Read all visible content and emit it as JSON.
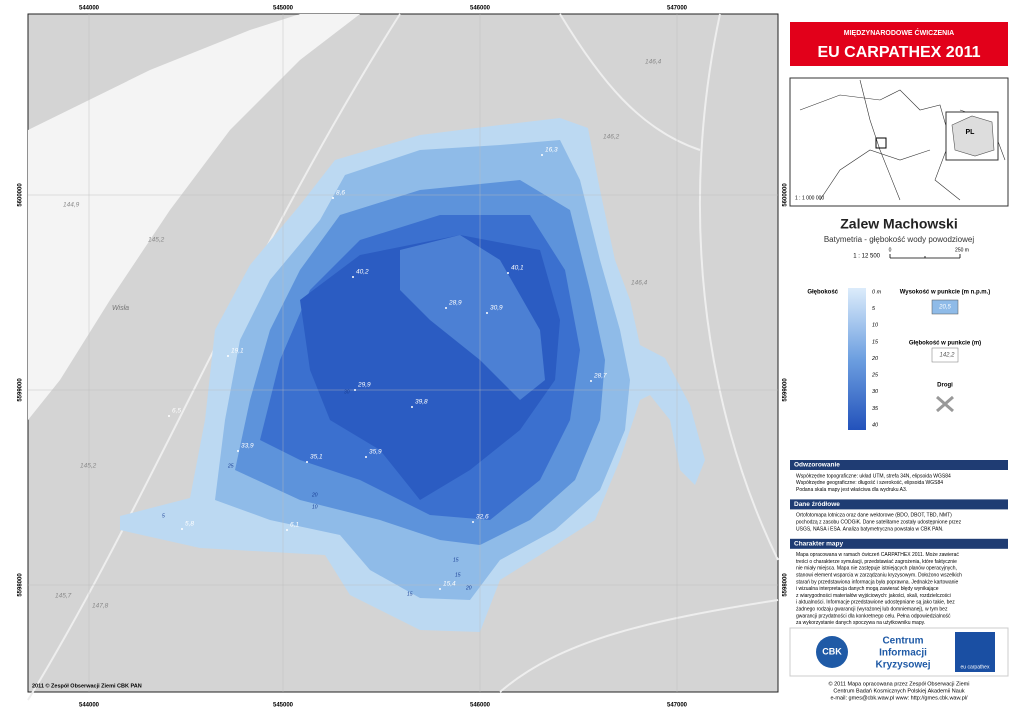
{
  "map": {
    "grid_top": [
      "544000",
      "545000",
      "546000",
      "547000"
    ],
    "grid_bottom": [
      "544000",
      "545000",
      "546000",
      "547000"
    ],
    "grid_left": [
      "5600000",
      "5599000",
      "5598000"
    ],
    "grid_right": [
      "5600000",
      "5599000",
      "5598000"
    ],
    "river": "Wisła",
    "depth_points": [
      "16,3",
      "8,6",
      "40,2",
      "40,1",
      "28,9",
      "30,9",
      "19,1",
      "28,7",
      "29,9",
      "39,8",
      "6,5",
      "33,9",
      "35,1",
      "35,9",
      "32,6",
      "5,8",
      "6,1",
      "15,4"
    ],
    "height_points": [
      "144,9",
      "145,2",
      "146,4",
      "146,2",
      "146,4",
      "145,2",
      "145,7",
      "147,8"
    ],
    "contour_labels": [
      "5",
      "10",
      "15",
      "20",
      "25",
      "30",
      "15",
      "20",
      "15"
    ],
    "credit": "2011 © Zespół Obserwacji Ziemi CBK PAN"
  },
  "panel": {
    "header_small": "MIĘDZYNARODOWE ĆWICZENIA",
    "header_big": "EU CARPATHEX 2011",
    "inset_country": "PL",
    "inset_scale": "1 : 1 000 000",
    "title": "Zalew Machowski",
    "subtitle": "Batymetria - głębokość wody powodziowej",
    "scale": "1 : 12 500",
    "scale_zero": "0",
    "scale_end": "250 m",
    "legend_depth": "Głębokość",
    "legend_ticks": [
      "0 m",
      "5",
      "10",
      "15",
      "20",
      "25",
      "30",
      "35",
      "40"
    ],
    "legend_height": "Wysokość w punkcie (m n.p.m.)",
    "legend_height_sample": "20,5",
    "legend_depth_point": "Głębokość w punkcie (m)",
    "legend_depth_point_sample": "142,2",
    "legend_roads": "Drogi",
    "sections": [
      {
        "heading": "Odwzorowanie",
        "lines": [
          "Współrzędne topograficzne: układ UTM, strefa 34N, elipsoida WGS84",
          "Współrzędne geograficzne: długość i szerokość, elipsoida WGS84",
          "Podana skala mapy jest właściwa dla wydruku A3."
        ]
      },
      {
        "heading": "Dane źródłowe",
        "lines": [
          "Ortofotomapa lotnicza oraz dane wektorowe (BDO, DBOT, TBD, NMT)",
          "pochodzą z zasobu CODGiK. Dane satelitarne zostały udostępnione przez",
          "USGS, NASA i ESA. Analiza batymetryczna powstała w CBK PAN."
        ]
      },
      {
        "heading": "Charakter mapy",
        "lines": [
          "Mapa opracowana w ramach ćwiczeń CARPATHEX 2011. Może zawierać",
          "treści o charakterze symulacji, przedstawiać zagrożenia, które faktycznie",
          "nie miały miejsca. Mapa nie zastępuje istniejących planów operacyjnych,",
          "stanowi element wsparcia w zarządzaniu kryzysowym. Dołożono wszelkich",
          "starań by przedstawiona informacja była poprawna. Jednakże kartowanie",
          "i wizualna interpretacja danych mogą zawierać błędy wynikające",
          "z wiarygodności materiałów wyjściowych: jakości, skali, rozdzielczości",
          "i aktualności. Informacje przedstawione udostępniane są jako takie, bez",
          "żadnego rodzaju gwarancji (wyrażonej lub domniemanej), w tym bez",
          "gwarancji przydatności dla konkretnego celu. Pełna odpowiedzialność",
          "za wykorzystanie danych spoczywa na użytkowniku mapy."
        ]
      }
    ],
    "logo_cbk": "CBK",
    "logo_lines": [
      "Centrum",
      "Informacji",
      "Kryzysowej"
    ],
    "logo_right": "eu carpathex",
    "footer": [
      "© 2011 Mapa opracowana przez Zespół Obserwacji Ziemi",
      "Centrum Badań Kosmicznych Polskiej Akademii Nauk",
      "e-mail: gmes@cbk.waw.pl   www: http://gmes.cbk.waw.pl/"
    ]
  }
}
